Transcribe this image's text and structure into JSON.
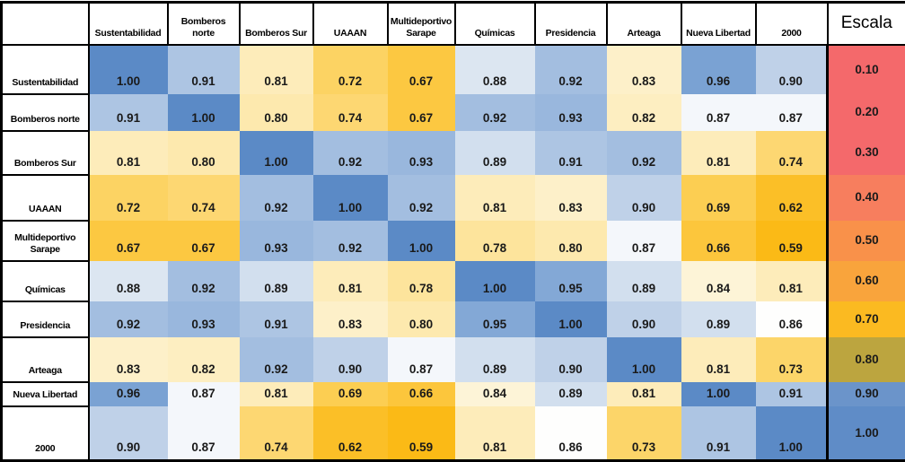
{
  "chart_data": {
    "type": "heatmap",
    "title": "",
    "legend_position": "right",
    "scale_range": [
      0.1,
      1.0
    ],
    "columns": [
      "Sustentabilidad",
      "Bomberos norte",
      "Bomberos Sur",
      "UAAAN",
      "Multideportivo Sarape",
      "Químicas",
      "Presidencia",
      "Arteaga",
      "Nueva Libertad",
      "2000"
    ],
    "rows": [
      "Sustentabilidad",
      "Bomberos norte",
      "Bomberos Sur",
      "UAAAN",
      "Multideportivo Sarape",
      "Químicas",
      "Presidencia",
      "Arteaga",
      "Nueva Libertad",
      "2000"
    ],
    "matrix": [
      [
        "1.00",
        "0.91",
        "0.81",
        "0.72",
        "0.67",
        "0.88",
        "0.92",
        "0.83",
        "0.96",
        "0.90"
      ],
      [
        "0.91",
        "1.00",
        "0.80",
        "0.74",
        "0.67",
        "0.92",
        "0.93",
        "0.82",
        "0.87",
        "0.87"
      ],
      [
        "0.81",
        "0.80",
        "1.00",
        "0.92",
        "0.93",
        "0.89",
        "0.91",
        "0.92",
        "0.81",
        "0.74"
      ],
      [
        "0.72",
        "0.74",
        "0.92",
        "1.00",
        "0.92",
        "0.81",
        "0.83",
        "0.90",
        "0.69",
        "0.62"
      ],
      [
        "0.67",
        "0.67",
        "0.93",
        "0.92",
        "1.00",
        "0.78",
        "0.80",
        "0.87",
        "0.66",
        "0.59"
      ],
      [
        "0.88",
        "0.92",
        "0.89",
        "0.81",
        "0.78",
        "1.00",
        "0.95",
        "0.89",
        "0.84",
        "0.81"
      ],
      [
        "0.92",
        "0.93",
        "0.91",
        "0.83",
        "0.80",
        "0.95",
        "1.00",
        "0.90",
        "0.89",
        "0.86"
      ],
      [
        "0.83",
        "0.82",
        "0.92",
        "0.90",
        "0.87",
        "0.89",
        "0.90",
        "1.00",
        "0.81",
        "0.73"
      ],
      [
        "0.96",
        "0.87",
        "0.81",
        "0.69",
        "0.66",
        "0.84",
        "0.89",
        "0.81",
        "1.00",
        "0.91"
      ],
      [
        "0.90",
        "0.87",
        "0.74",
        "0.62",
        "0.59",
        "0.81",
        "0.86",
        "0.73",
        "0.91",
        "1.00"
      ]
    ],
    "scale": {
      "label": "Escala",
      "entries": [
        {
          "value": "0.10",
          "color": "#F4696B"
        },
        {
          "value": "0.20",
          "color": "#F4696B"
        },
        {
          "value": "0.30",
          "color": "#F4696B"
        },
        {
          "value": "0.40",
          "color": "#F77E5E"
        },
        {
          "value": "0.50",
          "color": "#F9914A"
        },
        {
          "value": "0.60",
          "color": "#F9A43C"
        },
        {
          "value": "0.70",
          "color": "#FBBA21"
        },
        {
          "value": "0.80",
          "color": "#BCA53F"
        },
        {
          "value": "0.90",
          "color": "#6B94CA"
        },
        {
          "value": "1.00",
          "color": "#5F8CC7"
        }
      ]
    },
    "value_colors": {
      "1.00": "#5B8AC6",
      "0.96": "#7AA2D3",
      "0.95": "#83A8D6",
      "0.93": "#99B7DD",
      "0.92": "#A3BEE0",
      "0.91": "#ADC5E3",
      "0.90": "#BFD1E8",
      "0.89": "#D2DFEE",
      "0.88": "#DCE6F1",
      "0.87": "#F4F7FB",
      "0.86": "#FEFEFD",
      "0.84": "#FDF4D7",
      "0.83": "#FDF0C9",
      "0.82": "#FDEEC1",
      "0.81": "#FDECBA",
      "0.80": "#FDE9AE",
      "0.78": "#FDE49C",
      "0.74": "#FDD772",
      "0.73": "#FCD569",
      "0.72": "#FCD363",
      "0.69": "#FCCE52",
      "0.67": "#FCC841",
      "0.66": "#FCC63C",
      "0.62": "#FBBF27",
      "0.59": "#FBBA16"
    },
    "corner_label": ""
  }
}
